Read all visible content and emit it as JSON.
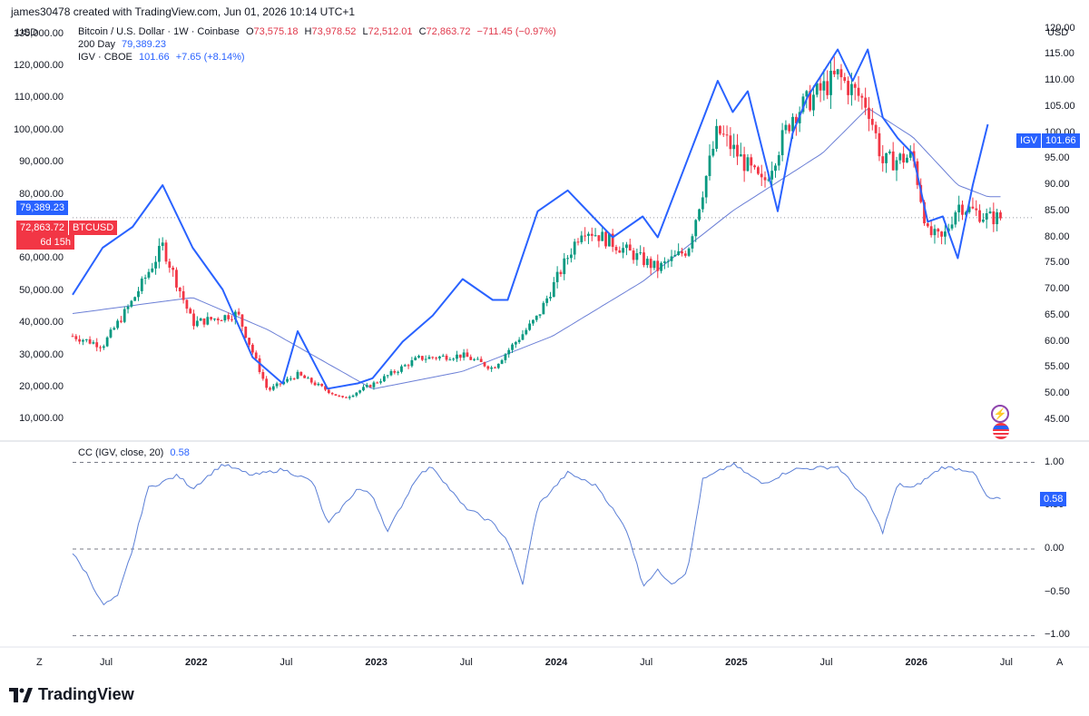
{
  "header": {
    "text": "james30478 created with TradingView.com, Jun 01, 2026 10:14 UTC+1"
  },
  "legend": {
    "symbol": "Bitcoin / U.S. Dollar · 1W · Coinbase",
    "o_label": "O",
    "o": "73,575.18",
    "h_label": "H",
    "h": "73,978.52",
    "l_label": "L",
    "l": "72,512.01",
    "c_label": "C",
    "c": "72,863.72",
    "change": "−711.45 (−0.97%)",
    "ma_label": "200 Day",
    "ma_value": "79,389.23",
    "igv_label": "IGV · CBOE",
    "igv_value": "101.66",
    "igv_change": "+7.65 (+8.14%)"
  },
  "axes": {
    "left_currency": "USD",
    "right_currency": "USD",
    "left_ticks": [
      "130,000.00",
      "120,000.00",
      "110,000.00",
      "100,000.00",
      "90,000.00",
      "80,000.00",
      "70,000.00",
      "60,000.00",
      "50,000.00",
      "40,000.00",
      "30,000.00",
      "20,000.00",
      "10,000.00"
    ],
    "right_ticks": [
      "120.00",
      "115.00",
      "110.00",
      "105.00",
      "100.00",
      "95.00",
      "90.00",
      "85.00",
      "80.00",
      "75.00",
      "70.00",
      "65.00",
      "60.00",
      "55.00",
      "50.00",
      "45.00"
    ],
    "cc_ticks": [
      "1.00",
      "0.50",
      "0.00",
      "−0.50",
      "−1.00"
    ],
    "x_ticks": [
      {
        "label": "Jul",
        "bold": false
      },
      {
        "label": "2022",
        "bold": true
      },
      {
        "label": "Jul",
        "bold": false
      },
      {
        "label": "2023",
        "bold": true
      },
      {
        "label": "Jul",
        "bold": false
      },
      {
        "label": "2024",
        "bold": true
      },
      {
        "label": "Jul",
        "bold": false
      },
      {
        "label": "2025",
        "bold": true
      },
      {
        "label": "Jul",
        "bold": false
      },
      {
        "label": "2026",
        "bold": true
      },
      {
        "label": "Jul",
        "bold": false
      }
    ],
    "x_left_btn": "Z",
    "x_right_btn": "A"
  },
  "tags": {
    "ma": "79,389.23",
    "price": "72,863.72",
    "price_symbol": "BTCUSD",
    "countdown": "6d 15h",
    "igv_label": "IGV",
    "igv_value": "101.66",
    "cc_value": "0.58"
  },
  "cc_legend": {
    "label": "CC (IGV, close, 20)",
    "value": "0.58"
  },
  "brand": {
    "name": "TradingView"
  },
  "colors": {
    "up": "#089981",
    "down": "#f23645",
    "igv": "#2962ff",
    "ma": "#6b7fd6",
    "cc": "#5b7fd6",
    "tag_blue": "#2962ff",
    "tag_red": "#f23645"
  },
  "chart_data": [
    {
      "type": "candlestick+line",
      "title": "Bitcoin / U.S. Dollar · 1W · Coinbase",
      "x_range": [
        "2021-05",
        "2026-07"
      ],
      "ylim_left": [
        5000,
        135000
      ],
      "ylim_right": [
        42,
        122
      ],
      "btc_close_anchors": [
        {
          "t": "2021-05",
          "v": 36000
        },
        {
          "t": "2021-07",
          "v": 33000
        },
        {
          "t": "2021-09",
          "v": 47000
        },
        {
          "t": "2021-11",
          "v": 64000
        },
        {
          "t": "2022-01",
          "v": 40000
        },
        {
          "t": "2022-04",
          "v": 43000
        },
        {
          "t": "2022-06",
          "v": 19000
        },
        {
          "t": "2022-08",
          "v": 24000
        },
        {
          "t": "2022-11",
          "v": 16500
        },
        {
          "t": "2023-01",
          "v": 21000
        },
        {
          "t": "2023-04",
          "v": 29000
        },
        {
          "t": "2023-07",
          "v": 30000
        },
        {
          "t": "2023-09",
          "v": 26000
        },
        {
          "t": "2023-12",
          "v": 42000
        },
        {
          "t": "2024-03",
          "v": 70000
        },
        {
          "t": "2024-05",
          "v": 65000
        },
        {
          "t": "2024-08",
          "v": 57000
        },
        {
          "t": "2024-10",
          "v": 63000
        },
        {
          "t": "2024-12",
          "v": 100000
        },
        {
          "t": "2025-03",
          "v": 83000
        },
        {
          "t": "2025-05",
          "v": 105000
        },
        {
          "t": "2025-08",
          "v": 117000
        },
        {
          "t": "2025-10",
          "v": 108000
        },
        {
          "t": "2025-11",
          "v": 90000
        },
        {
          "t": "2026-01",
          "v": 92000
        },
        {
          "t": "2026-02",
          "v": 68000
        },
        {
          "t": "2026-03",
          "v": 66000
        },
        {
          "t": "2026-04",
          "v": 77000
        },
        {
          "t": "2026-05",
          "v": 75000
        },
        {
          "t": "2026-06",
          "v": 72863.72
        }
      ],
      "ma200_anchors": [
        {
          "t": "2021-05",
          "v": 43000
        },
        {
          "t": "2022-01",
          "v": 48000
        },
        {
          "t": "2022-06",
          "v": 38000
        },
        {
          "t": "2023-01",
          "v": 19500
        },
        {
          "t": "2023-07",
          "v": 25000
        },
        {
          "t": "2024-01",
          "v": 36000
        },
        {
          "t": "2024-07",
          "v": 53000
        },
        {
          "t": "2025-01",
          "v": 75000
        },
        {
          "t": "2025-07",
          "v": 93000
        },
        {
          "t": "2025-10",
          "v": 107000
        },
        {
          "t": "2026-01",
          "v": 98000
        },
        {
          "t": "2026-04",
          "v": 83000
        },
        {
          "t": "2026-06",
          "v": 79389.23
        }
      ],
      "igv_anchors": [
        {
          "t": "2021-05",
          "v": 69
        },
        {
          "t": "2021-07",
          "v": 78
        },
        {
          "t": "2021-09",
          "v": 82
        },
        {
          "t": "2021-11",
          "v": 90
        },
        {
          "t": "2022-01",
          "v": 78
        },
        {
          "t": "2022-03",
          "v": 70
        },
        {
          "t": "2022-05",
          "v": 57
        },
        {
          "t": "2022-07",
          "v": 52
        },
        {
          "t": "2022-08",
          "v": 62
        },
        {
          "t": "2022-10",
          "v": 51
        },
        {
          "t": "2022-12",
          "v": 52
        },
        {
          "t": "2023-01",
          "v": 53
        },
        {
          "t": "2023-03",
          "v": 60
        },
        {
          "t": "2023-05",
          "v": 65
        },
        {
          "t": "2023-07",
          "v": 72
        },
        {
          "t": "2023-09",
          "v": 68
        },
        {
          "t": "2023-10",
          "v": 68
        },
        {
          "t": "2023-12",
          "v": 85
        },
        {
          "t": "2024-02",
          "v": 89
        },
        {
          "t": "2024-04",
          "v": 83
        },
        {
          "t": "2024-05",
          "v": 80
        },
        {
          "t": "2024-07",
          "v": 84
        },
        {
          "t": "2024-08",
          "v": 80
        },
        {
          "t": "2024-10",
          "v": 95
        },
        {
          "t": "2024-12",
          "v": 110
        },
        {
          "t": "2025-01",
          "v": 104
        },
        {
          "t": "2025-02",
          "v": 108
        },
        {
          "t": "2025-04",
          "v": 85
        },
        {
          "t": "2025-05",
          "v": 100
        },
        {
          "t": "2025-06",
          "v": 107
        },
        {
          "t": "2025-08",
          "v": 116
        },
        {
          "t": "2025-09",
          "v": 110
        },
        {
          "t": "2025-10",
          "v": 116
        },
        {
          "t": "2025-11",
          "v": 103
        },
        {
          "t": "2025-12",
          "v": 99
        },
        {
          "t": "2026-01",
          "v": 96
        },
        {
          "t": "2026-02",
          "v": 83
        },
        {
          "t": "2026-03",
          "v": 84
        },
        {
          "t": "2026-04",
          "v": 76
        },
        {
          "t": "2026-05",
          "v": 90
        },
        {
          "t": "2026-06",
          "v": 101.66
        }
      ]
    },
    {
      "type": "line",
      "title": "CC (IGV, close, 20)",
      "ylim": [
        -1.1,
        1.1
      ],
      "reference_lines": [
        1.0,
        0.0,
        -1.0
      ],
      "cc_anchors": [
        {
          "t": "2021-05",
          "v": -0.05
        },
        {
          "t": "2021-06",
          "v": -0.3
        },
        {
          "t": "2021-07",
          "v": -0.65
        },
        {
          "t": "2021-08",
          "v": -0.55
        },
        {
          "t": "2021-09",
          "v": 0.0
        },
        {
          "t": "2021-10",
          "v": 0.7
        },
        {
          "t": "2021-12",
          "v": 0.85
        },
        {
          "t": "2022-01",
          "v": 0.7
        },
        {
          "t": "2022-03",
          "v": 0.98
        },
        {
          "t": "2022-05",
          "v": 0.85
        },
        {
          "t": "2022-07",
          "v": 0.92
        },
        {
          "t": "2022-09",
          "v": 0.78
        },
        {
          "t": "2022-10",
          "v": 0.28
        },
        {
          "t": "2022-12",
          "v": 0.7
        },
        {
          "t": "2023-01",
          "v": 0.62
        },
        {
          "t": "2023-02",
          "v": 0.2
        },
        {
          "t": "2023-04",
          "v": 0.85
        },
        {
          "t": "2023-05",
          "v": 0.95
        },
        {
          "t": "2023-07",
          "v": 0.5
        },
        {
          "t": "2023-09",
          "v": 0.3
        },
        {
          "t": "2023-10",
          "v": 0.1
        },
        {
          "t": "2023-11",
          "v": -0.4
        },
        {
          "t": "2023-12",
          "v": 0.5
        },
        {
          "t": "2024-02",
          "v": 0.88
        },
        {
          "t": "2024-04",
          "v": 0.72
        },
        {
          "t": "2024-06",
          "v": 0.2
        },
        {
          "t": "2024-07",
          "v": -0.42
        },
        {
          "t": "2024-08",
          "v": -0.25
        },
        {
          "t": "2024-09",
          "v": -0.4
        },
        {
          "t": "2024-10",
          "v": -0.25
        },
        {
          "t": "2024-11",
          "v": 0.8
        },
        {
          "t": "2025-01",
          "v": 0.98
        },
        {
          "t": "2025-03",
          "v": 0.75
        },
        {
          "t": "2025-05",
          "v": 0.92
        },
        {
          "t": "2025-08",
          "v": 0.95
        },
        {
          "t": "2025-10",
          "v": 0.55
        },
        {
          "t": "2025-11",
          "v": 0.2
        },
        {
          "t": "2025-12",
          "v": 0.75
        },
        {
          "t": "2026-01",
          "v": 0.7
        },
        {
          "t": "2026-03",
          "v": 0.95
        },
        {
          "t": "2026-05",
          "v": 0.9
        },
        {
          "t": "2026-06",
          "v": 0.58
        }
      ]
    }
  ]
}
